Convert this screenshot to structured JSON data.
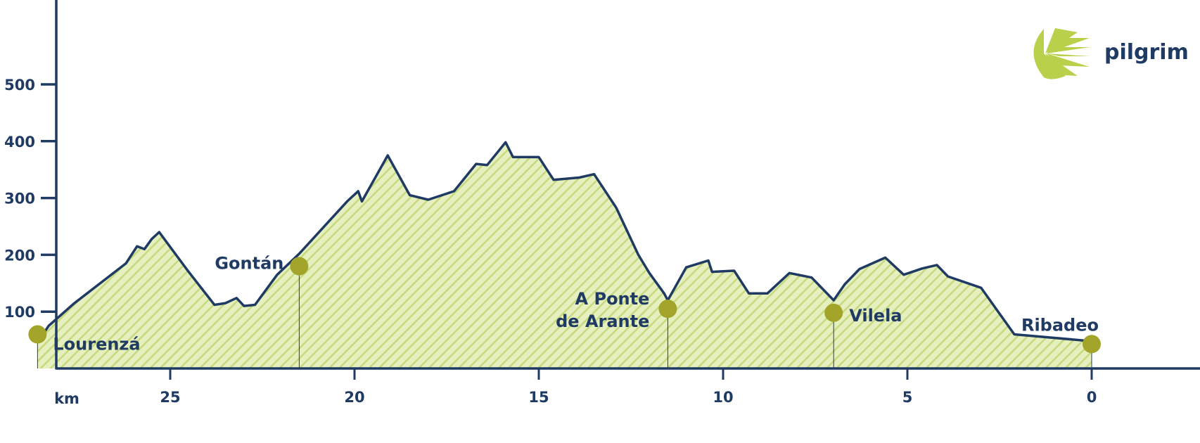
{
  "chart_data": {
    "type": "area",
    "title": "",
    "xlabel": "km",
    "ylabel": "",
    "x_reversed": true,
    "xlim": [
      28.9,
      0
    ],
    "ylim": [
      0,
      650
    ],
    "x_ticks": [
      25,
      20,
      15,
      10,
      5,
      0
    ],
    "y_ticks": [
      100,
      200,
      300,
      400,
      500
    ],
    "series": [
      {
        "values": [
          {
            "x": 28.6,
            "y": 45
          },
          {
            "x": 28.3,
            "y": 75
          },
          {
            "x": 27.6,
            "y": 115
          },
          {
            "x": 26.8,
            "y": 155
          },
          {
            "x": 26.2,
            "y": 185
          },
          {
            "x": 25.9,
            "y": 215
          },
          {
            "x": 25.7,
            "y": 210
          },
          {
            "x": 25.5,
            "y": 228
          },
          {
            "x": 25.3,
            "y": 240
          },
          {
            "x": 24.5,
            "y": 170
          },
          {
            "x": 23.8,
            "y": 112
          },
          {
            "x": 23.5,
            "y": 115
          },
          {
            "x": 23.2,
            "y": 124
          },
          {
            "x": 23.0,
            "y": 110
          },
          {
            "x": 22.7,
            "y": 112
          },
          {
            "x": 22.1,
            "y": 165
          },
          {
            "x": 21.5,
            "y": 202
          },
          {
            "x": 20.2,
            "y": 294
          },
          {
            "x": 19.9,
            "y": 312
          },
          {
            "x": 19.8,
            "y": 294
          },
          {
            "x": 19.1,
            "y": 375
          },
          {
            "x": 18.5,
            "y": 305
          },
          {
            "x": 18.0,
            "y": 297
          },
          {
            "x": 17.3,
            "y": 312
          },
          {
            "x": 16.7,
            "y": 360
          },
          {
            "x": 16.4,
            "y": 358
          },
          {
            "x": 15.9,
            "y": 398
          },
          {
            "x": 15.7,
            "y": 372
          },
          {
            "x": 15.0,
            "y": 372
          },
          {
            "x": 14.6,
            "y": 332
          },
          {
            "x": 13.9,
            "y": 336
          },
          {
            "x": 13.5,
            "y": 342
          },
          {
            "x": 12.9,
            "y": 283
          },
          {
            "x": 12.3,
            "y": 200
          },
          {
            "x": 12.0,
            "y": 168
          },
          {
            "x": 11.6,
            "y": 132
          },
          {
            "x": 11.5,
            "y": 120
          },
          {
            "x": 11.0,
            "y": 178
          },
          {
            "x": 10.4,
            "y": 190
          },
          {
            "x": 10.3,
            "y": 170
          },
          {
            "x": 9.7,
            "y": 172
          },
          {
            "x": 9.3,
            "y": 132
          },
          {
            "x": 8.8,
            "y": 132
          },
          {
            "x": 8.2,
            "y": 168
          },
          {
            "x": 7.6,
            "y": 160
          },
          {
            "x": 7.0,
            "y": 120
          },
          {
            "x": 6.7,
            "y": 148
          },
          {
            "x": 6.3,
            "y": 175
          },
          {
            "x": 5.6,
            "y": 195
          },
          {
            "x": 5.1,
            "y": 165
          },
          {
            "x": 4.6,
            "y": 176
          },
          {
            "x": 4.2,
            "y": 182
          },
          {
            "x": 3.9,
            "y": 162
          },
          {
            "x": 3.0,
            "y": 142
          },
          {
            "x": 2.1,
            "y": 60
          },
          {
            "x": 0.0,
            "y": 48
          }
        ]
      }
    ],
    "waypoints": [
      {
        "label": "Lourenzá",
        "x": 28.6,
        "y": 60
      },
      {
        "label": "Gontán",
        "x": 21.5,
        "y": 180
      },
      {
        "label": "A Ponte\nde Arante",
        "x": 11.5,
        "y": 105
      },
      {
        "label": "Vilela",
        "x": 7.0,
        "y": 98
      },
      {
        "label": "Ribadeo",
        "x": 0.0,
        "y": 43
      }
    ],
    "grid": false,
    "legend": "none"
  },
  "logo": {
    "text": "pilgrim",
    "icon": "scallop-shell-icon"
  },
  "colors": {
    "line": "#1f3a63",
    "fill": "#d9e8a3",
    "hatch": "#c4d87a",
    "marker": "#a3a52a",
    "logo_accent": "#b9d04a",
    "text": "#1f3a63"
  }
}
